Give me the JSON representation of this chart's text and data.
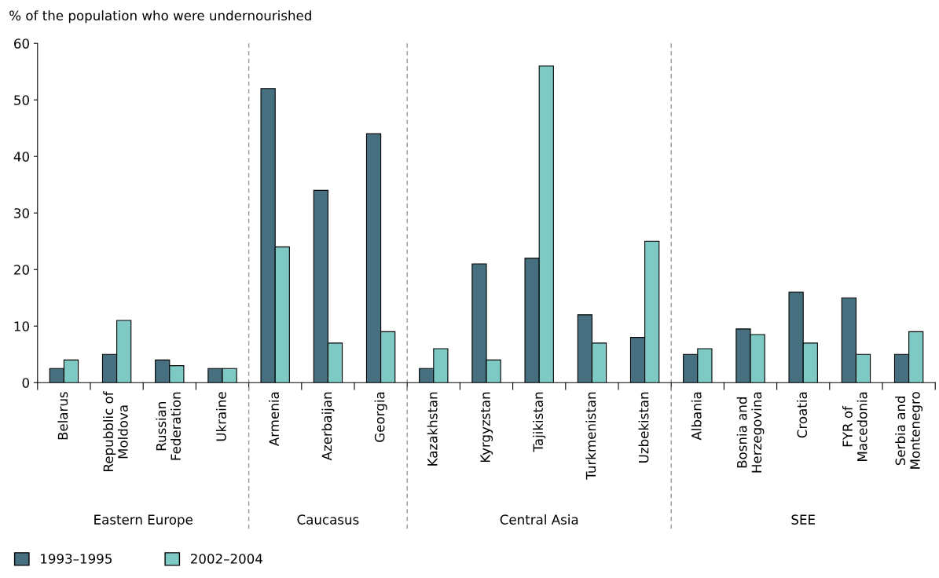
{
  "chart_data": {
    "type": "bar",
    "ylabel": "% of the population who were undernourished",
    "categories": [
      "Belarus",
      "Repubblic of\nMoldova",
      "Russian\nFederation",
      "Ukraine",
      "Armenia",
      "Azerbaijan",
      "Georgia",
      "Kazakhstan",
      "Kyrgyzstan",
      "Tajikistan",
      "Turkmenistan",
      "Uzbekistan",
      "Albania",
      "Bosnia and\nHerzegovina",
      "Croatia",
      "FYR of\nMacedonia",
      "Serbia and\nMontenegro"
    ],
    "series": [
      {
        "name": "1993–1995",
        "color": "#46707f",
        "values": [
          2.5,
          5,
          4,
          2.5,
          52,
          34,
          44,
          2.5,
          21,
          22,
          12,
          8,
          5,
          9.5,
          16,
          15,
          5
        ]
      },
      {
        "name": "2002–2004",
        "color": "#7fc9c4",
        "values": [
          4,
          11,
          3,
          2.5,
          24,
          7,
          9,
          6,
          4,
          56,
          7,
          25,
          6,
          8.5,
          7,
          5,
          9
        ]
      }
    ],
    "annotations": [
      "Eastern Europe",
      "Caucasus",
      "Central Asia",
      "SEE"
    ],
    "ylim": [
      0,
      60
    ],
    "yticks": [
      0,
      10,
      20,
      30,
      40,
      50,
      60
    ],
    "grid": false,
    "legend": "bottom left"
  }
}
